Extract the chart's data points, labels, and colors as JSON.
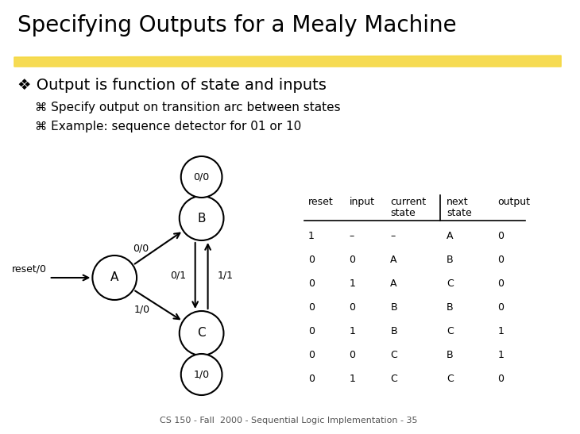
{
  "title": "Specifying Outputs for a Mealy Machine",
  "background_color": "#ffffff",
  "title_color": "#000000",
  "title_fontsize": 20,
  "highlight_color": "#f5d840",
  "bullet1": "Output is function of state and inputs",
  "bullet1_marker": "❖",
  "sub_bullet1": "Specify output on transition arc between states",
  "sub_bullet2": "Example: sequence detector for 01 or 10",
  "sub_marker": "⌘",
  "table_rows": [
    [
      "1",
      "–",
      "–",
      "A",
      "0"
    ],
    [
      "0",
      "0",
      "A",
      "B",
      "0"
    ],
    [
      "0",
      "1",
      "A",
      "C",
      "0"
    ],
    [
      "0",
      "0",
      "B",
      "B",
      "0"
    ],
    [
      "0",
      "1",
      "B",
      "C",
      "1"
    ],
    [
      "0",
      "0",
      "C",
      "B",
      "1"
    ],
    [
      "0",
      "1",
      "C",
      "C",
      "0"
    ]
  ],
  "footer": "CS 150 - Fall  2000 - Sequential Logic Implementation - 35",
  "node_color": "#ffffff",
  "node_edge_color": "#000000"
}
